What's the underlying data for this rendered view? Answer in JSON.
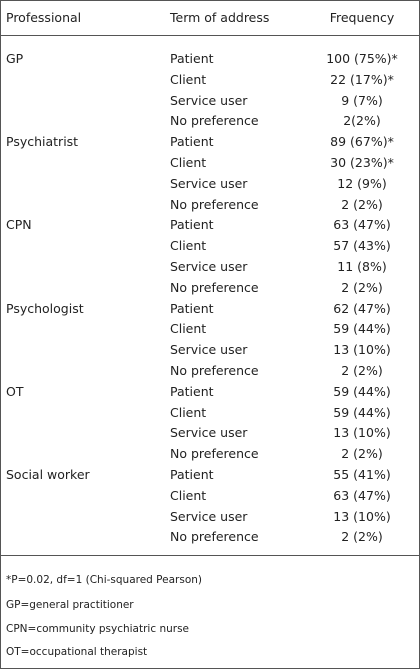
{
  "table": {
    "header": [
      "Professional",
      "Term of address",
      "Frequency"
    ],
    "groups": [
      {
        "professional": "GP",
        "rows": [
          [
            "Patient",
            "100 (75%)*"
          ],
          [
            "Client",
            "22 (17%)*"
          ],
          [
            "Service user",
            "9 (7%)"
          ],
          [
            "No preference",
            "2(2%)"
          ]
        ]
      },
      {
        "professional": "Psychiatrist",
        "rows": [
          [
            "Patient",
            "89 (67%)*"
          ],
          [
            "Client",
            "30 (23%)*"
          ],
          [
            "Service user",
            "12 (9%)"
          ],
          [
            "No preference",
            "2 (2%)"
          ]
        ]
      },
      {
        "professional": "CPN",
        "rows": [
          [
            "Patient",
            "63 (47%)"
          ],
          [
            "Client",
            "57 (43%)"
          ],
          [
            "Service user",
            "11 (8%)"
          ],
          [
            "No preference",
            "2 (2%)"
          ]
        ]
      },
      {
        "professional": "Psychologist",
        "rows": [
          [
            "Patient",
            "62 (47%)"
          ],
          [
            "Client",
            "59 (44%)"
          ],
          [
            "Service user",
            "13 (10%)"
          ],
          [
            "No preference",
            "2 (2%)"
          ]
        ]
      },
      {
        "professional": "OT",
        "rows": [
          [
            "Patient",
            "59 (44%)"
          ],
          [
            "Client",
            "59 (44%)"
          ],
          [
            "Service user",
            "13 (10%)"
          ],
          [
            "No preference",
            "2 (2%)"
          ]
        ]
      },
      {
        "professional": "Social worker",
        "rows": [
          [
            "Patient",
            "55 (41%)"
          ],
          [
            "Client",
            "63 (47%)"
          ],
          [
            "Service user",
            "13 (10%)"
          ],
          [
            "No preference",
            "2 (2%)"
          ]
        ]
      }
    ]
  },
  "footnotes": [
    "*P=0.02, df=1 (Chi-squared Pearson)",
    "GP=general practitioner",
    "CPN=community psychiatric nurse",
    "OT=occupational therapist"
  ]
}
